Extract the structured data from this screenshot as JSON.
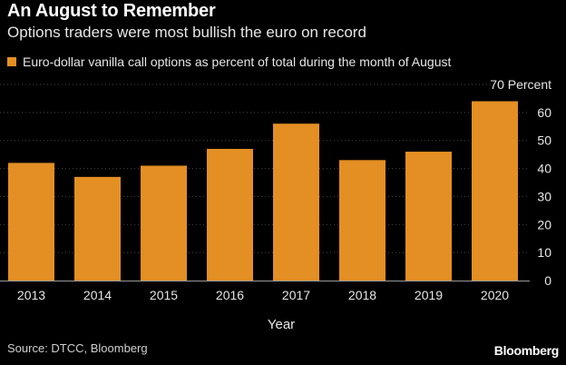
{
  "header": {
    "title": "An August to Remember",
    "subtitle": "Options traders were most bullish the euro on record"
  },
  "legend": {
    "label": "Euro-dollar vanilla call options as percent of total during the month of August"
  },
  "colors": {
    "bar": "#E38F24",
    "grid": "#4a4a4a",
    "background": "#000000"
  },
  "chart_data": {
    "type": "bar",
    "categories": [
      "2013",
      "2014",
      "2015",
      "2016",
      "2017",
      "2018",
      "2019",
      "2020"
    ],
    "series": [
      {
        "name": "Euro-dollar vanilla call options as percent of total during the month of August",
        "values": [
          42,
          37,
          41,
          47,
          56,
          43,
          46,
          64
        ]
      }
    ],
    "xlabel": "Year",
    "ylabel": "",
    "ylim": [
      0,
      70
    ],
    "yticks": [
      "0",
      "10",
      "20",
      "30",
      "40",
      "50",
      "60",
      "70 Percent"
    ],
    "grid": true,
    "legend_position": "top-left"
  },
  "footer": {
    "source": "Source: DTCC, Bloomberg",
    "brand": "Bloomberg"
  }
}
